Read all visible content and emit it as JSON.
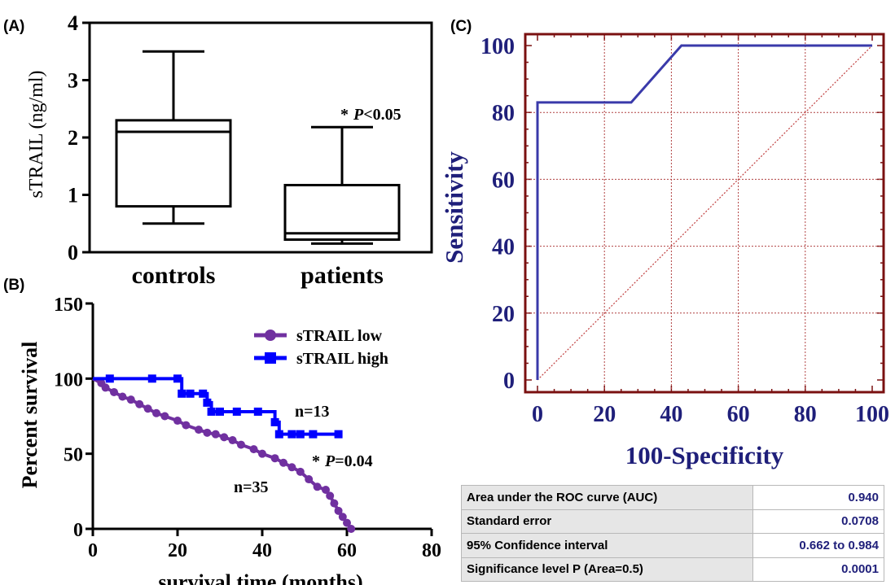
{
  "panels": {
    "a": "(A)",
    "b": "(B)",
    "c": "(C)"
  },
  "chart_data": [
    {
      "type": "box",
      "ylabel": "sTRAIL (ng/ml)",
      "ylim": [
        0,
        4
      ],
      "yticks": [
        "0",
        "1",
        "2",
        "3",
        "4"
      ],
      "categories": [
        "controls",
        "patients"
      ],
      "boxes": [
        {
          "name": "controls",
          "min": 0.5,
          "q1": 0.8,
          "median": 2.1,
          "q3": 2.3,
          "max": 3.5
        },
        {
          "name": "patients",
          "min": 0.15,
          "q1": 0.22,
          "median": 0.33,
          "q3": 1.17,
          "max": 2.18
        }
      ],
      "annotation": {
        "star": "*",
        "p": "P",
        "rest": "<0.05"
      }
    },
    {
      "type": "line",
      "xlabel": "survival time (months)",
      "ylabel": "Percent survival",
      "xlim": [
        0,
        80
      ],
      "ylim": [
        0,
        150
      ],
      "xticks": [
        "0",
        "20",
        "40",
        "60",
        "80"
      ],
      "yticks": [
        "0",
        "50",
        "100",
        "150"
      ],
      "legend_position": "top-right",
      "series": [
        {
          "name": "sTRAIL low",
          "color": "#7030a0",
          "marker": "circle",
          "points": [
            [
              0,
              100
            ],
            [
              2,
              97
            ],
            [
              3,
              94
            ],
            [
              5,
              91
            ],
            [
              7,
              88
            ],
            [
              9,
              86
            ],
            [
              11,
              83
            ],
            [
              13,
              80
            ],
            [
              15,
              77
            ],
            [
              17,
              75
            ],
            [
              20,
              72
            ],
            [
              22,
              69
            ],
            [
              25,
              66
            ],
            [
              27,
              64
            ],
            [
              29,
              63
            ],
            [
              31,
              61
            ],
            [
              33,
              59
            ],
            [
              35,
              56
            ],
            [
              38,
              53
            ],
            [
              40,
              50
            ],
            [
              43,
              47
            ],
            [
              45,
              44
            ],
            [
              47,
              41
            ],
            [
              49,
              38
            ],
            [
              51,
              33
            ],
            [
              53,
              28
            ],
            [
              55,
              26
            ],
            [
              56,
              22
            ],
            [
              57,
              17
            ],
            [
              58,
              12
            ],
            [
              59,
              8
            ],
            [
              60,
              4
            ],
            [
              61,
              0
            ]
          ]
        },
        {
          "name": "sTRAIL high",
          "color": "#0000ff",
          "marker": "square",
          "points": [
            [
              0,
              100
            ],
            [
              4,
              100
            ],
            [
              14,
              100
            ],
            [
              20,
              100
            ],
            [
              21,
              90
            ],
            [
              23,
              90
            ],
            [
              26,
              90
            ],
            [
              27,
              84
            ],
            [
              28,
              78
            ],
            [
              30,
              78
            ],
            [
              34,
              78
            ],
            [
              39,
              78
            ],
            [
              43,
              71
            ],
            [
              44,
              63
            ],
            [
              47,
              63
            ],
            [
              49,
              63
            ],
            [
              52,
              63
            ],
            [
              58,
              63
            ]
          ]
        }
      ],
      "annotations": {
        "n_high": "n=13",
        "n_low": "n=35",
        "p_star": "*",
        "p_letter": "P",
        "p_rest": "=0.04"
      }
    },
    {
      "type": "line",
      "xlabel": "100-Specificity",
      "ylabel": "Sensitivity",
      "xlim": [
        0,
        100
      ],
      "ylim": [
        0,
        100
      ],
      "xticks": [
        "0",
        "20",
        "40",
        "60",
        "80",
        "100"
      ],
      "yticks": [
        "0",
        "20",
        "40",
        "60",
        "80",
        "100"
      ],
      "grid": true,
      "series": [
        {
          "name": "ROC",
          "color": "#3a3aaa",
          "points": [
            [
              0,
              0
            ],
            [
              0,
              83
            ],
            [
              28,
              83
            ],
            [
              43,
              100
            ],
            [
              100,
              100
            ]
          ]
        },
        {
          "name": "reference",
          "color": "#c04040",
          "style": "dotted",
          "points": [
            [
              0,
              0
            ],
            [
              100,
              100
            ]
          ]
        }
      ]
    }
  ],
  "roc_table": {
    "rows": [
      {
        "label": "Area under the ROC curve (AUC)",
        "value": "0.940"
      },
      {
        "label": "Standard error",
        "value": "0.0708"
      },
      {
        "label": "95% Confidence interval",
        "value": "0.662 to 0.984"
      },
      {
        "label": "Significance level P (Area=0.5)",
        "value": "0.0001"
      }
    ]
  }
}
